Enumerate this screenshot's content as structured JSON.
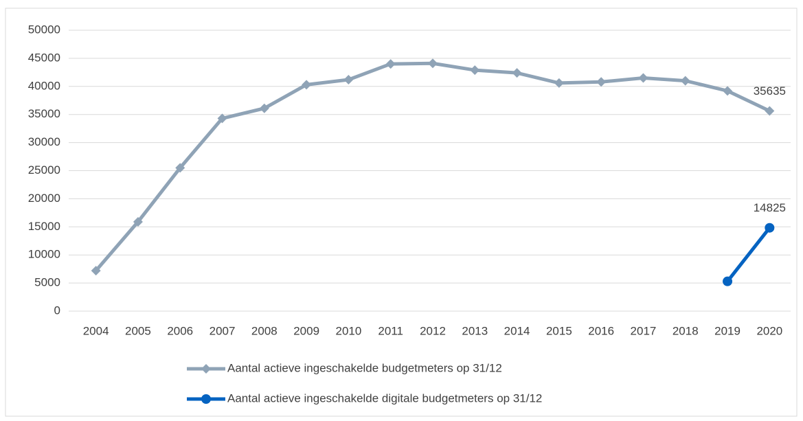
{
  "chart_data": {
    "type": "line",
    "categories": [
      "2004",
      "2005",
      "2006",
      "2007",
      "2008",
      "2009",
      "2010",
      "2011",
      "2012",
      "2013",
      "2014",
      "2015",
      "2016",
      "2017",
      "2018",
      "2019",
      "2020"
    ],
    "series": [
      {
        "name": "Aantal actieve ingeschakelde budgetmeters op 31/12",
        "color": "#8fa3b6",
        "marker": "diamond",
        "values": [
          7200,
          15900,
          25500,
          34300,
          36100,
          40300,
          41200,
          44000,
          44100,
          42900,
          42400,
          40600,
          40800,
          41500,
          41000,
          39200,
          35635
        ]
      },
      {
        "name": "Aantal actieve ingeschakelde digitale budgetmeters op 31/12",
        "color": "#0563c1",
        "marker": "circle",
        "values": [
          null,
          null,
          null,
          null,
          null,
          null,
          null,
          null,
          null,
          null,
          null,
          null,
          null,
          null,
          null,
          5300,
          14825
        ]
      }
    ],
    "ylim": [
      0,
      50000
    ],
    "yticks": [
      0,
      5000,
      10000,
      15000,
      20000,
      25000,
      30000,
      35000,
      40000,
      45000,
      50000
    ],
    "grid": true,
    "legend": "bottom",
    "data_labels": "last"
  }
}
